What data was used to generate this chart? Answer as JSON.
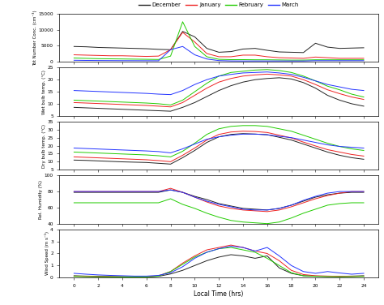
{
  "hours": [
    0,
    1,
    2,
    3,
    4,
    5,
    6,
    7,
    8,
    9,
    10,
    11,
    12,
    13,
    14,
    15,
    16,
    17,
    18,
    19,
    20,
    21,
    22,
    23,
    24
  ],
  "legend_labels": [
    "December",
    "January",
    "February",
    "March"
  ],
  "colors": [
    "#222222",
    "#ee2222",
    "#22cc00",
    "#2233ff"
  ],
  "panel1_ylabel": "Tot Number Conc. (cm⁻³)",
  "panel2_ylabel": "Wet bulb temp. (°C)",
  "panel3_ylabel": "Dry bulb temp. (°C)",
  "panel4_ylabel": "Rel. Humidity (%)",
  "panel5_ylabel": "Wind Speed (m s⁻¹)",
  "xlabel": "Local Time (hrs)",
  "panel1_ylim": [
    0,
    15000
  ],
  "panel2_ylim": [
    5,
    25
  ],
  "panel3_ylim": [
    5,
    35
  ],
  "panel4_ylim": [
    40,
    100
  ],
  "panel5_ylim": [
    0,
    4
  ],
  "panel1_yticks": [
    0,
    5000,
    10000,
    15000
  ],
  "panel2_yticks": [
    5,
    10,
    15,
    20,
    25
  ],
  "panel3_yticks": [
    5,
    10,
    15,
    20,
    25,
    30,
    35
  ],
  "panel4_yticks": [
    40,
    60,
    80,
    100
  ],
  "panel5_yticks": [
    0,
    1,
    2,
    3,
    4
  ],
  "xticks": [
    0,
    2,
    4,
    6,
    8,
    10,
    12,
    14,
    16,
    18,
    20,
    22,
    24
  ],
  "dec_tot": [
    4800,
    4700,
    4500,
    4400,
    4300,
    4200,
    4100,
    3900,
    3800,
    9500,
    7800,
    4200,
    3000,
    3200,
    4000,
    4200,
    3600,
    3100,
    3000,
    2900,
    5800,
    4600,
    4200,
    4300,
    4400
  ],
  "jan_tot": [
    2200,
    2100,
    2000,
    1900,
    1900,
    1800,
    1700,
    1800,
    3800,
    9200,
    6200,
    2600,
    1600,
    1600,
    2100,
    2100,
    1600,
    1300,
    1200,
    1100,
    1500,
    1300,
    1100,
    1100,
    1100
  ],
  "feb_tot": [
    1200,
    1100,
    1000,
    950,
    900,
    850,
    800,
    750,
    1800,
    12500,
    4800,
    1600,
    800,
    700,
    700,
    650,
    650,
    600,
    550,
    550,
    650,
    650,
    650,
    650,
    650
  ],
  "mar_tot": [
    500,
    450,
    420,
    400,
    380,
    370,
    360,
    350,
    3800,
    4800,
    2200,
    900,
    400,
    300,
    280,
    280,
    280,
    280,
    280,
    280,
    380,
    380,
    380,
    380,
    380
  ],
  "dec_wet": [
    8.5,
    8.3,
    8.1,
    7.9,
    7.7,
    7.5,
    7.3,
    7.1,
    6.9,
    8.5,
    10.5,
    13.0,
    15.5,
    17.5,
    19.0,
    20.0,
    20.5,
    20.8,
    20.3,
    18.8,
    16.5,
    13.5,
    11.5,
    10.0,
    9.0
  ],
  "jan_wet": [
    10.5,
    10.3,
    10.1,
    9.9,
    9.7,
    9.5,
    9.3,
    9.0,
    8.7,
    10.5,
    13.5,
    16.5,
    19.0,
    20.5,
    21.5,
    22.0,
    22.3,
    22.0,
    21.5,
    20.0,
    18.0,
    15.8,
    14.2,
    12.8,
    11.8
  ],
  "feb_wet": [
    11.5,
    11.3,
    11.1,
    10.9,
    10.7,
    10.5,
    10.3,
    10.0,
    9.5,
    11.5,
    15.0,
    18.5,
    21.5,
    23.0,
    23.5,
    24.0,
    24.2,
    23.8,
    23.0,
    21.5,
    19.5,
    17.3,
    15.8,
    14.0,
    12.8
  ],
  "mar_wet": [
    15.5,
    15.3,
    15.1,
    14.9,
    14.7,
    14.5,
    14.3,
    14.0,
    13.8,
    15.5,
    18.0,
    20.0,
    21.5,
    22.2,
    22.8,
    23.0,
    23.2,
    22.8,
    22.2,
    21.0,
    19.5,
    18.0,
    17.0,
    16.0,
    15.5
  ],
  "dec_dry": [
    11.0,
    10.8,
    10.5,
    10.2,
    9.9,
    9.7,
    9.5,
    9.0,
    8.5,
    12.5,
    17.0,
    22.0,
    25.5,
    27.0,
    27.5,
    27.2,
    26.8,
    25.2,
    23.5,
    21.0,
    18.5,
    16.0,
    14.0,
    12.5,
    11.5
  ],
  "jan_dry": [
    13.0,
    12.7,
    12.4,
    12.1,
    11.8,
    11.5,
    11.2,
    10.7,
    10.0,
    14.0,
    18.5,
    23.5,
    27.0,
    28.5,
    29.0,
    28.8,
    28.2,
    26.5,
    24.8,
    22.2,
    19.8,
    17.5,
    16.0,
    14.5,
    13.5
  ],
  "feb_dry": [
    16.0,
    15.7,
    15.4,
    15.1,
    14.8,
    14.5,
    14.2,
    13.7,
    13.0,
    16.5,
    21.5,
    27.0,
    30.5,
    32.0,
    32.5,
    32.5,
    32.0,
    30.5,
    29.0,
    26.5,
    24.0,
    21.5,
    19.5,
    18.0,
    17.0
  ],
  "mar_dry": [
    18.5,
    18.2,
    17.9,
    17.6,
    17.3,
    17.0,
    16.7,
    16.3,
    15.5,
    18.0,
    21.0,
    24.0,
    25.5,
    26.5,
    27.2,
    27.2,
    26.8,
    25.8,
    25.0,
    23.5,
    22.0,
    20.5,
    19.5,
    19.0,
    18.5
  ],
  "dec_rh": [
    79,
    79,
    79,
    79,
    79,
    79,
    79,
    79,
    82,
    79,
    74,
    70,
    65,
    62,
    59,
    58,
    57,
    59,
    63,
    68,
    73,
    76,
    78,
    79,
    79
  ],
  "jan_rh": [
    80,
    80,
    80,
    80,
    80,
    80,
    80,
    80,
    84,
    79,
    73,
    67,
    62,
    59,
    57,
    56,
    55,
    57,
    61,
    66,
    71,
    75,
    78,
    80,
    80
  ],
  "feb_rh": [
    66,
    66,
    66,
    66,
    66,
    66,
    66,
    66,
    71,
    64,
    59,
    53,
    48,
    44,
    42,
    41,
    40,
    42,
    47,
    53,
    58,
    63,
    65,
    66,
    66
  ],
  "mar_rh": [
    80,
    80,
    80,
    80,
    80,
    80,
    80,
    80,
    82,
    79,
    73,
    68,
    64,
    61,
    58,
    57,
    57,
    59,
    63,
    69,
    74,
    78,
    80,
    80,
    80
  ],
  "dec_ws": [
    0.15,
    0.12,
    0.1,
    0.08,
    0.07,
    0.06,
    0.05,
    0.1,
    0.3,
    0.6,
    1.0,
    1.4,
    1.7,
    1.9,
    1.8,
    1.6,
    1.8,
    0.8,
    0.35,
    0.15,
    0.12,
    0.1,
    0.1,
    0.12,
    0.15
  ],
  "jan_ws": [
    0.12,
    0.1,
    0.08,
    0.07,
    0.06,
    0.05,
    0.05,
    0.15,
    0.5,
    1.2,
    1.8,
    2.3,
    2.5,
    2.7,
    2.5,
    2.2,
    2.0,
    1.4,
    0.6,
    0.25,
    0.15,
    0.12,
    0.1,
    0.1,
    0.12
  ],
  "feb_ws": [
    0.1,
    0.08,
    0.07,
    0.06,
    0.05,
    0.04,
    0.04,
    0.12,
    0.5,
    1.1,
    1.7,
    2.1,
    2.4,
    2.5,
    2.3,
    2.1,
    1.6,
    1.0,
    0.4,
    0.15,
    0.1,
    0.08,
    0.07,
    0.08,
    0.1
  ],
  "mar_ws": [
    0.35,
    0.28,
    0.22,
    0.18,
    0.15,
    0.12,
    0.12,
    0.18,
    0.4,
    0.9,
    1.6,
    2.1,
    2.4,
    2.6,
    2.5,
    2.2,
    2.5,
    1.8,
    1.0,
    0.5,
    0.35,
    0.5,
    0.38,
    0.28,
    0.35
  ]
}
